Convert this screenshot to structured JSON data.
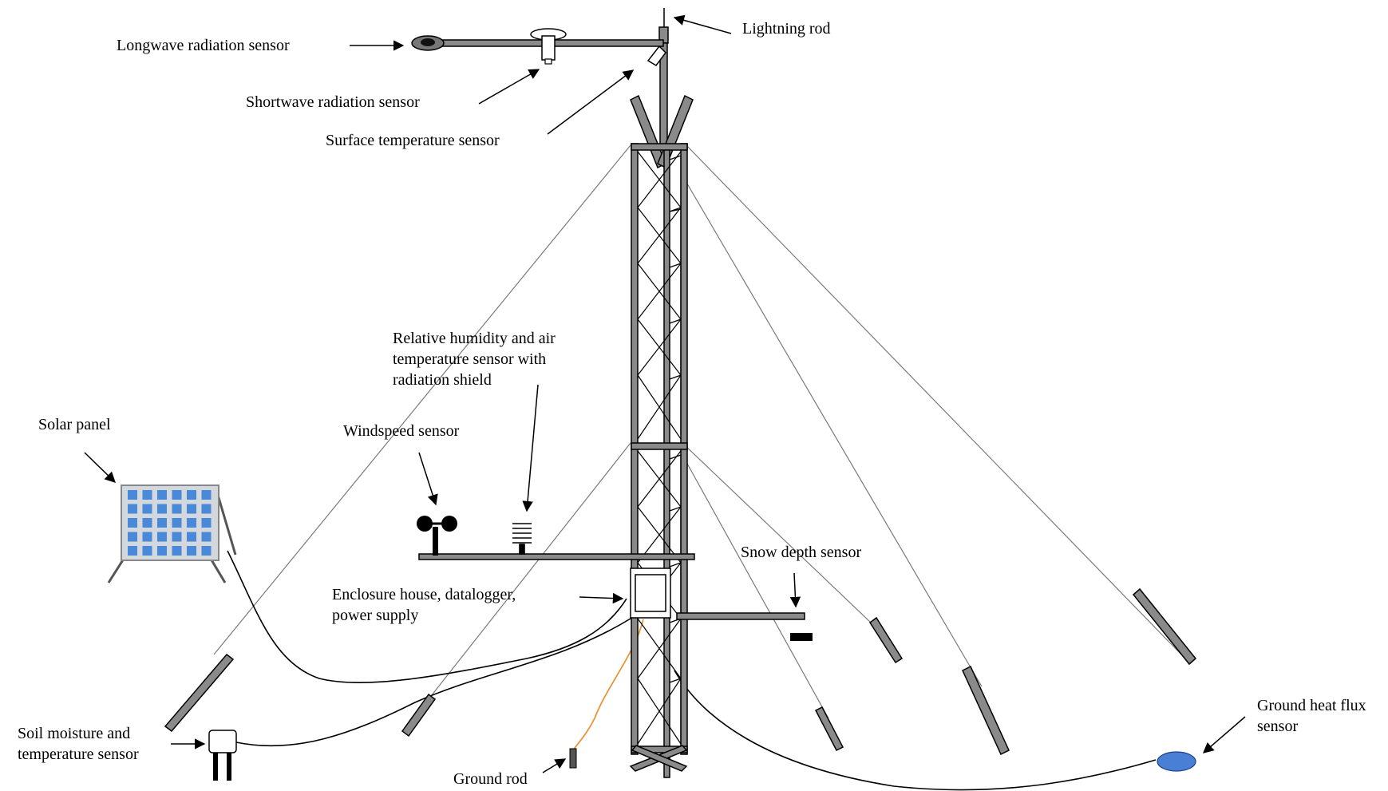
{
  "labels": {
    "lightning_rod": "Lightning rod",
    "longwave": "Longwave radiation sensor",
    "shortwave": "Shortwave radiation sensor",
    "surface_temp": "Surface temperature sensor",
    "rh_line1": "Relative humidity and air",
    "rh_line2": "temperature sensor with",
    "rh_line3": "radiation shield",
    "solar_panel": "Solar panel",
    "windspeed": "Windspeed sensor",
    "snow_depth": "Snow depth sensor",
    "enclosure_line1": "Enclosure house, datalogger,",
    "enclosure_line2": "power supply",
    "soil_line1": "Soil moisture and",
    "soil_line2": "temperature sensor",
    "ground_rod": "Ground rod",
    "ghf_line1": "Ground heat flux",
    "ghf_line2": "sensor"
  },
  "colors": {
    "metal": "#8a8a8a",
    "panel_frame": "#d3d8de",
    "panel_cell": "#4a88d8",
    "heat_flux_sensor": "#4a7fd6",
    "ground_wire": "#e8953a",
    "guy_wire": "#7a7a7a"
  }
}
